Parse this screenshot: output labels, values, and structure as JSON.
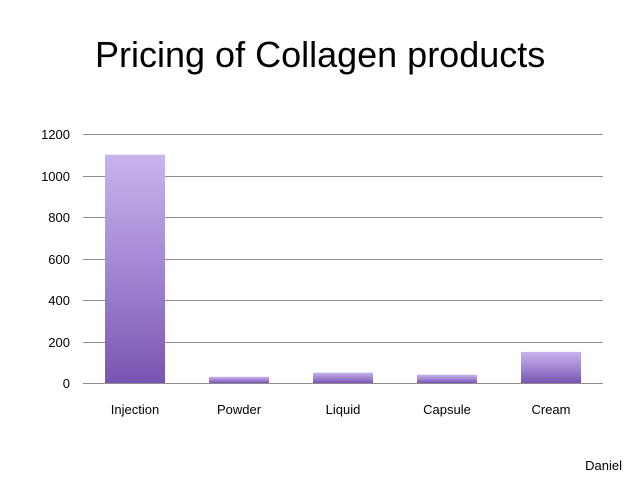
{
  "title": "Pricing of Collagen products",
  "footer": {
    "author": "Daniel"
  },
  "colors": {
    "bar_top": "#c8b3ee",
    "bar_bottom": "#7a55b3",
    "gridline": "#8c8c8c",
    "text": "#000000"
  },
  "chart_data": {
    "type": "bar",
    "title": "Pricing of Collagen products",
    "categories": [
      "Injection",
      "Powder",
      "Liquid",
      "Capsule",
      "Cream"
    ],
    "values": [
      1100,
      30,
      50,
      40,
      150
    ],
    "ylim": [
      0,
      1200
    ],
    "yticks": [
      0,
      200,
      400,
      600,
      800,
      1000,
      1200
    ],
    "grid": true,
    "legend": "none",
    "xlabel": "",
    "ylabel": ""
  }
}
